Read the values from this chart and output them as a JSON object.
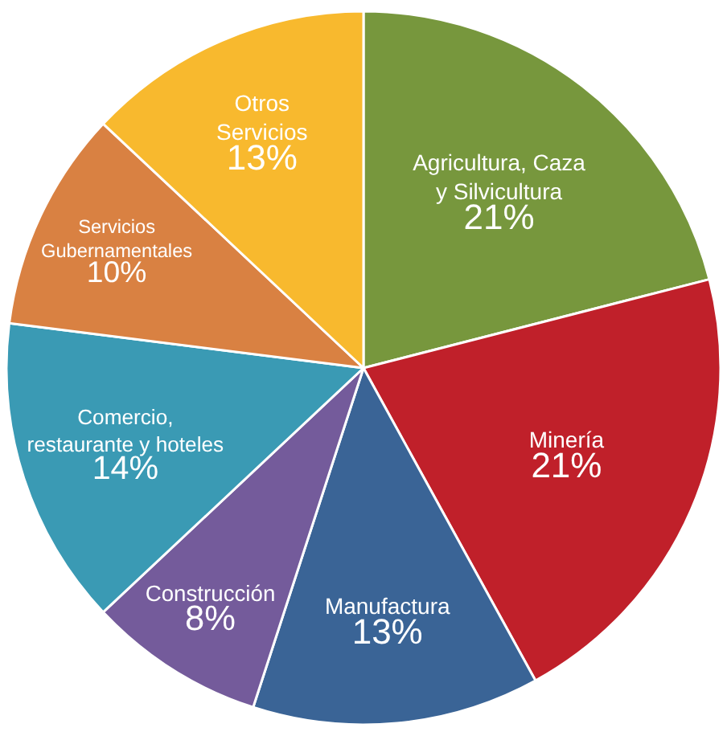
{
  "chart_data": {
    "type": "pie",
    "categories": [
      "Agricultura, Caza\ny Silvicultura",
      "Minería",
      "Manufactura",
      "Construcción",
      "Comercio,\nrestaurante y hoteles",
      "Servicios\nGubernamentales",
      "Otros\nServicios"
    ],
    "values": [
      21,
      21,
      13,
      8,
      14,
      10,
      13
    ],
    "value_labels": [
      "21%",
      "21%",
      "13%",
      "8%",
      "14%",
      "10%",
      "13%"
    ],
    "colors": [
      "#77973d",
      "#c0202a",
      "#3a6496",
      "#745b9b",
      "#3a9ab4",
      "#d98142",
      "#f8b92e"
    ]
  }
}
